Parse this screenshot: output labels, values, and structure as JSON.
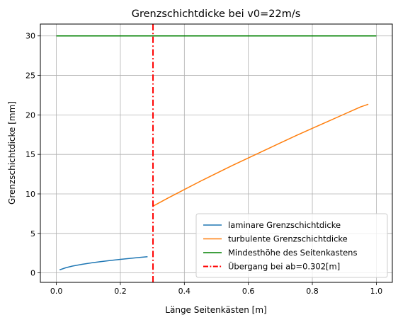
{
  "chart_data": {
    "type": "line",
    "title": "Grenzschichtdicke bei v0=22m/s",
    "xlabel": "Länge Seitenkästen [m]",
    "ylabel": "Grenzschichtdicke [mm]",
    "xlim": [
      -0.05,
      1.05
    ],
    "ylim": [
      -1.2,
      31.5
    ],
    "xticks": [
      0.0,
      0.2,
      0.4,
      0.6,
      0.8,
      1.0
    ],
    "xtick_labels": [
      "0.0",
      "0.2",
      "0.4",
      "0.6",
      "0.8",
      "1.0"
    ],
    "yticks": [
      0,
      5,
      10,
      15,
      20,
      25,
      30
    ],
    "ytick_labels": [
      "0",
      "5",
      "10",
      "15",
      "20",
      "25",
      "30"
    ],
    "grid": true,
    "legend_position": "lower-right",
    "series": [
      {
        "name": "laminare Grenzschichtdicke",
        "color": "#1f77b4",
        "style": "solid",
        "x": [
          0.01,
          0.03,
          0.05,
          0.08,
          0.11,
          0.14,
          0.17,
          0.2,
          0.23,
          0.26,
          0.285
        ],
        "y": [
          0.38,
          0.66,
          0.86,
          1.08,
          1.27,
          1.43,
          1.58,
          1.71,
          1.84,
          1.96,
          2.05
        ]
      },
      {
        "name": "turbulente Grenzschichtdicke",
        "color": "#ff7f0e",
        "style": "solid",
        "x": [
          0.302,
          0.35,
          0.4,
          0.45,
          0.5,
          0.55,
          0.6,
          0.65,
          0.7,
          0.75,
          0.8,
          0.85,
          0.9,
          0.95,
          0.975
        ],
        "y": [
          8.45,
          9.5,
          10.55,
          11.6,
          12.6,
          13.6,
          14.55,
          15.5,
          16.45,
          17.4,
          18.3,
          19.2,
          20.1,
          21.0,
          21.35
        ]
      },
      {
        "name": "Mindesthöhe des Seitenkastens",
        "color": "#008000",
        "style": "solid",
        "x": [
          0.0,
          1.0
        ],
        "y": [
          30,
          30
        ]
      },
      {
        "name": "Übergang bei ab=0.302[m]",
        "color": "#ff0000",
        "style": "dashdot",
        "x": [
          0.302,
          0.302
        ],
        "y": [
          -1.2,
          31.5
        ]
      }
    ]
  }
}
